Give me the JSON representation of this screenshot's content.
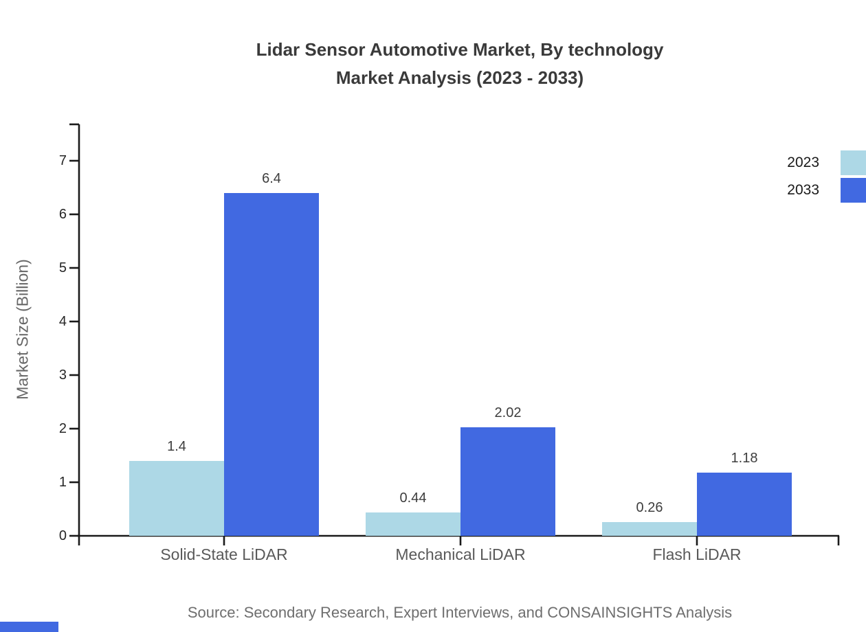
{
  "header": {
    "title_line1": "Lidar Sensor Automotive Market, By technology",
    "title_line2": "Market Analysis (2023 - 2033)"
  },
  "axes": {
    "y_label": "Market Size (Billion)"
  },
  "legend": {
    "items": [
      {
        "label": "2023",
        "color": "#add8e6"
      },
      {
        "label": "2033",
        "color": "#4169e1"
      }
    ]
  },
  "footer": {
    "source": "Source: Secondary Research, Expert Interviews, and CONSAINSIGHTS Analysis",
    "accent_color": "#4169e1"
  },
  "chart_data": {
    "type": "bar",
    "title": "Lidar Sensor Automotive Market, By technology Market Analysis (2023 - 2033)",
    "categories": [
      "Solid-State LiDAR",
      "Mechanical LiDAR",
      "Flash LiDAR"
    ],
    "series": [
      {
        "name": "2023",
        "color": "#add8e6",
        "values": [
          1.4,
          0.44,
          0.26
        ]
      },
      {
        "name": "2033",
        "color": "#4169e1",
        "values": [
          6.4,
          2.02,
          1.18
        ]
      }
    ],
    "value_labels": [
      [
        "1.4",
        "6.4"
      ],
      [
        "0.44",
        "2.02"
      ],
      [
        "0.26",
        "1.18"
      ]
    ],
    "xlabel": "",
    "ylabel": "Market Size (Billion)",
    "yticks": [
      0,
      1,
      2,
      3,
      4,
      5,
      6,
      7
    ],
    "ylim": [
      0,
      7.7
    ],
    "grid": false,
    "legend_position": "top-right",
    "axis_color": "#1a1a1a"
  }
}
